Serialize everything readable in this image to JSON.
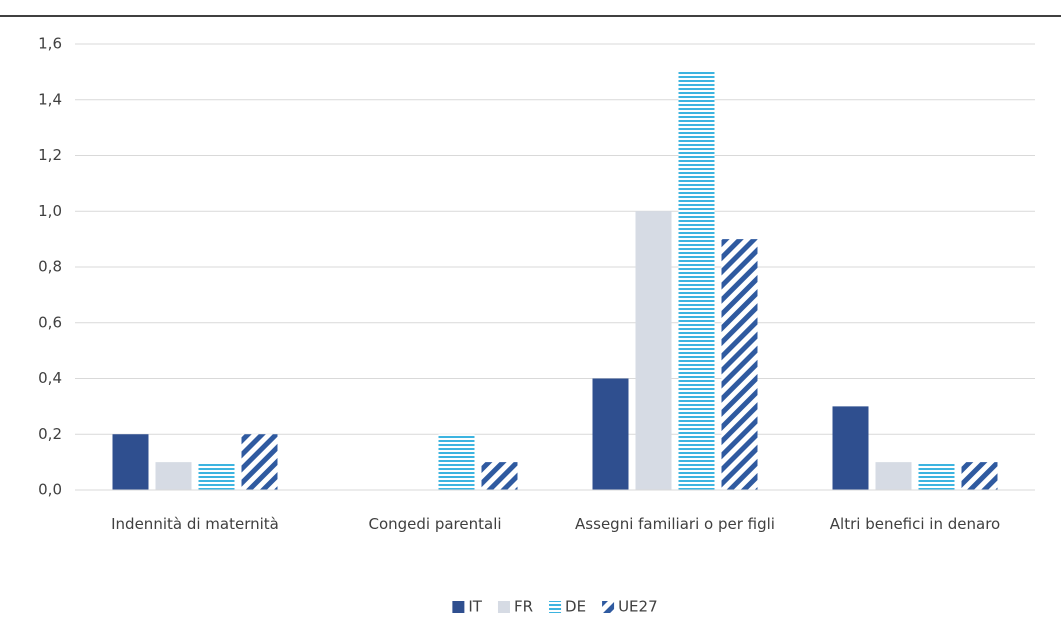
{
  "chart_data": {
    "type": "bar",
    "categories": [
      "Indennità di maternità",
      "Congedi parentali",
      "Assegni familiari o per figli",
      "Altri benefici in denaro"
    ],
    "series": [
      {
        "name": "IT",
        "color": "#2f4f8f",
        "pattern": "solid",
        "values": [
          0.2,
          0,
          0.4,
          0.3
        ]
      },
      {
        "name": "FR",
        "color": "#d6dbe4",
        "pattern": "solid",
        "values": [
          0.1,
          0,
          1.0,
          0.1
        ]
      },
      {
        "name": "DE",
        "color": "#3db4e0",
        "pattern": "horizontal-stripes",
        "values": [
          0.1,
          0.2,
          1.5,
          0.1
        ]
      },
      {
        "name": "UE27",
        "color": "#2f5aa0",
        "pattern": "diagonal-stripes",
        "values": [
          0.2,
          0.1,
          0.9,
          0.1
        ]
      }
    ],
    "ylim": [
      0,
      1.6
    ],
    "yticks": [
      {
        "value": 0,
        "label": "0,0"
      },
      {
        "value": 0.2,
        "label": "0,2"
      },
      {
        "value": 0.4,
        "label": "0,4"
      },
      {
        "value": 0.6,
        "label": "0,6"
      },
      {
        "value": 0.8,
        "label": "0,8"
      },
      {
        "value": 1.0,
        "label": "1,0"
      },
      {
        "value": 1.2,
        "label": "1,2"
      },
      {
        "value": 1.4,
        "label": "1,4"
      },
      {
        "value": 1.6,
        "label": "1,6"
      }
    ],
    "grid": true,
    "legend": "bottom"
  }
}
